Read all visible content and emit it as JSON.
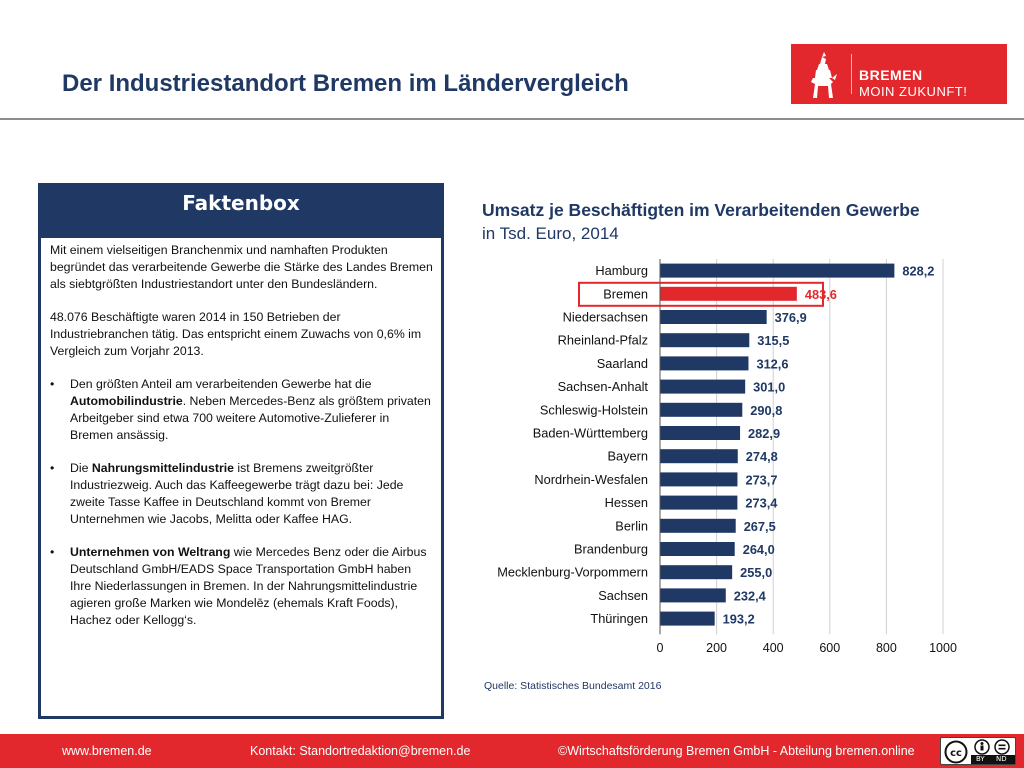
{
  "header": {
    "title": "Der Industriestandort Bremen im Ländervergleich",
    "logo_line1": "BREMEN",
    "logo_line2": "MOIN ZUKUNFT!"
  },
  "factbox": {
    "title": "Faktenbox",
    "intro": "Mit einem vielseitigen Branchenmix und namhaften Produkten begründet das verarbeitende Gewerbe die Stärke des Landes Bremen als siebtgrößten Industriestandort unter den Bundesländern.",
    "stats": "48.076 Beschäftigte waren 2014 in 150 Betrieben der Industriebranchen tätig. Das entspricht einem Zuwachs von 0,6% im Vergleich zum Vorjahr 2013.",
    "bullets": [
      {
        "pre": "Den größten Anteil am verarbeitenden Gewerbe hat die ",
        "bold": "Automobilindustrie",
        "post": ". Neben Mercedes-Benz als größtem privaten Arbeitgeber sind etwa 700 weitere Automotive-Zulieferer in Bremen ansässig."
      },
      {
        "pre": "Die ",
        "bold": "Nahrungsmittelindustrie",
        "post": " ist Bremens zweitgrößter Industriezweig. Auch das Kaffeegewerbe trägt dazu bei: Jede zweite Tasse Kaffee in Deutschland kommt von Bremer Unternehmen wie Jacobs, Melitta oder Kaffee HAG."
      },
      {
        "pre": "",
        "bold": "Unternehmen von Weltrang",
        "post": " wie Mercedes Benz oder die Airbus Deutschland GmbH/EADS Space Transportation GmbH haben Ihre Niederlassungen in Bremen. In der Nahrungsmittelindustrie agieren große Marken wie Mondelēz (ehemals Kraft Foods), Hachez oder Kellogg‘s."
      }
    ]
  },
  "chart": {
    "title": "Umsatz je Beschäftigten im Verarbeitenden Gewerbe",
    "subtitle": "in Tsd. Euro, 2014",
    "source": "Quelle: Statistisches Bundesamt 2016"
  },
  "chart_data": {
    "type": "bar",
    "orientation": "horizontal",
    "categories": [
      "Hamburg",
      "Bremen",
      "Niedersachsen",
      "Rheinland-Pfalz",
      "Saarland",
      "Sachsen-Anhalt",
      "Schleswig-Holstein",
      "Baden-Württemberg",
      "Bayern",
      "Nordrhein-Wesfalen",
      "Hessen",
      "Berlin",
      "Brandenburg",
      "Mecklenburg-Vorpommern",
      "Sachsen",
      "Thüringen"
    ],
    "values": [
      828.2,
      483.6,
      376.9,
      315.5,
      312.6,
      301.0,
      290.8,
      282.9,
      274.8,
      273.7,
      273.4,
      267.5,
      264.0,
      255.0,
      232.4,
      193.2
    ],
    "value_labels": [
      "828,2",
      "483,6",
      "376,9",
      "315,5",
      "312,6",
      "301,0",
      "290,8",
      "282,9",
      "274,8",
      "273,7",
      "273,4",
      "267,5",
      "264,0",
      "255,0",
      "232,4",
      "193,2"
    ],
    "xlim": [
      0,
      1000
    ],
    "xticks": [
      0,
      200,
      400,
      600,
      800,
      1000
    ],
    "grid": "vertical",
    "highlight_category": "Bremen",
    "colors": {
      "bar": "#1f3864",
      "highlight": "#e3282d",
      "grid": "#d0d0d0"
    }
  },
  "footer": {
    "website": "www.bremen.de",
    "contact": "Kontakt: Standortredaktion@bremen.de",
    "copyright": "©Wirtschaftsförderung Bremen GmbH - Abteilung bremen.online",
    "license_icons": [
      "cc-icon",
      "by-icon",
      "nd-icon"
    ],
    "license_labels": [
      "BY",
      "ND"
    ]
  },
  "colors": {
    "brand_red": "#e3282d",
    "navy": "#1f3864"
  }
}
